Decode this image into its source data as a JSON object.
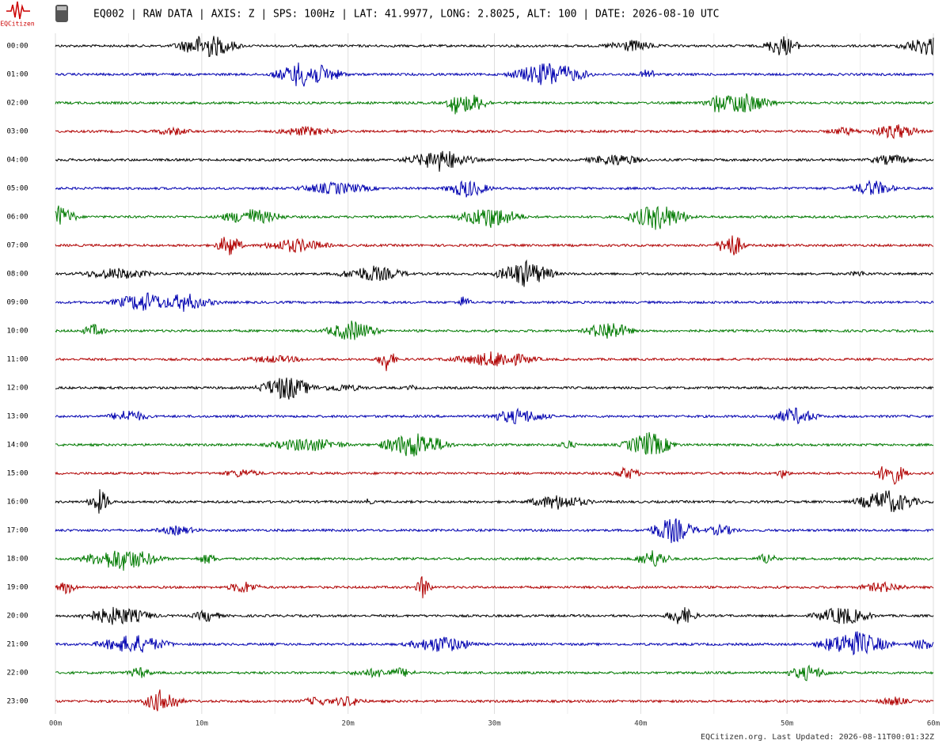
{
  "header": {
    "logo_text": "EQCitizen",
    "title": "EQ002 | RAW DATA | AXIS: Z | SPS: 100Hz | LAT: 41.9977, LONG: 2.8025, ALT: 100 | DATE: 2026-08-10 UTC"
  },
  "chart_data": {
    "type": "helicorder",
    "rows": [
      "00:00",
      "01:00",
      "02:00",
      "03:00",
      "04:00",
      "05:00",
      "06:00",
      "07:00",
      "08:00",
      "09:00",
      "10:00",
      "11:00",
      "12:00",
      "13:00",
      "14:00",
      "15:00",
      "16:00",
      "17:00",
      "18:00",
      "19:00",
      "20:00",
      "21:00",
      "22:00",
      "23:00"
    ],
    "colors": [
      "#000000",
      "#0000b0",
      "#007a00",
      "#b00000"
    ],
    "xlim": [
      0,
      60
    ],
    "xticks": [
      {
        "value": 0,
        "label": "00m"
      },
      {
        "value": 10,
        "label": "10m"
      },
      {
        "value": 20,
        "label": "20m"
      },
      {
        "value": 30,
        "label": "30m"
      },
      {
        "value": 40,
        "label": "40m"
      },
      {
        "value": 50,
        "label": "50m"
      },
      {
        "value": 60,
        "label": "60m"
      }
    ],
    "grid": [
      5,
      15,
      25,
      35,
      45,
      55
    ]
  },
  "footer": "EQCitizen.org. Last Updated: 2026-08-11T00:01:32Z"
}
